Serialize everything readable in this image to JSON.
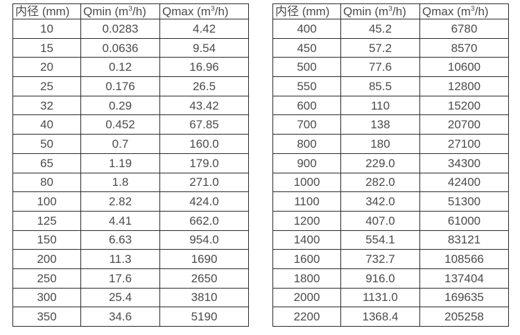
{
  "chart_data": [
    {
      "type": "table",
      "name": "flow-range-small-diameters",
      "columns": [
        "内径 (mm)",
        "Qmin (m³/h)",
        "Qmax (m³/h)"
      ],
      "rows": [
        [
          "10",
          "0.0283",
          "4.42"
        ],
        [
          "15",
          "0.0636",
          "9.54"
        ],
        [
          "20",
          "0.12",
          "16.96"
        ],
        [
          "25",
          "0.176",
          "26.5"
        ],
        [
          "32",
          "0.29",
          "43.42"
        ],
        [
          "40",
          "0.452",
          "67.85"
        ],
        [
          "50",
          "0.7",
          "160.0"
        ],
        [
          "65",
          "1.19",
          "179.0"
        ],
        [
          "80",
          "1.8",
          "271.0"
        ],
        [
          "100",
          "2.82",
          "424.0"
        ],
        [
          "125",
          "4.41",
          "662.0"
        ],
        [
          "150",
          "6.63",
          "954.0"
        ],
        [
          "200",
          "11.3",
          "1690"
        ],
        [
          "250",
          "17.6",
          "2650"
        ],
        [
          "300",
          "25.4",
          "3810"
        ],
        [
          "350",
          "34.6",
          "5190"
        ]
      ]
    },
    {
      "type": "table",
      "name": "flow-range-large-diameters",
      "columns": [
        "内径 (mm)",
        "Qmin (m³/h)",
        "Qmax (m³/h)"
      ],
      "rows": [
        [
          "400",
          "45.2",
          "6780"
        ],
        [
          "450",
          "57.2",
          "8570"
        ],
        [
          "500",
          "77.6",
          "10600"
        ],
        [
          "550",
          "85.5",
          "12800"
        ],
        [
          "600",
          "110",
          "15200"
        ],
        [
          "700",
          "138",
          "20700"
        ],
        [
          "800",
          "180",
          "27100"
        ],
        [
          "900",
          "229.0",
          "34300"
        ],
        [
          "1000",
          "282.0",
          "42400"
        ],
        [
          "1100",
          "342.0",
          "51300"
        ],
        [
          "1200",
          "407.0",
          "61000"
        ],
        [
          "1400",
          "554.1",
          "83121"
        ],
        [
          "1600",
          "732.7",
          "108566"
        ],
        [
          "1800",
          "916.0",
          "137404"
        ],
        [
          "2000",
          "1131.0",
          "169635"
        ],
        [
          "2200",
          "1368.4",
          "205258"
        ]
      ]
    }
  ],
  "colors": {
    "text": "#4a4a4a",
    "border": "#262626",
    "background": "#ffffff"
  }
}
